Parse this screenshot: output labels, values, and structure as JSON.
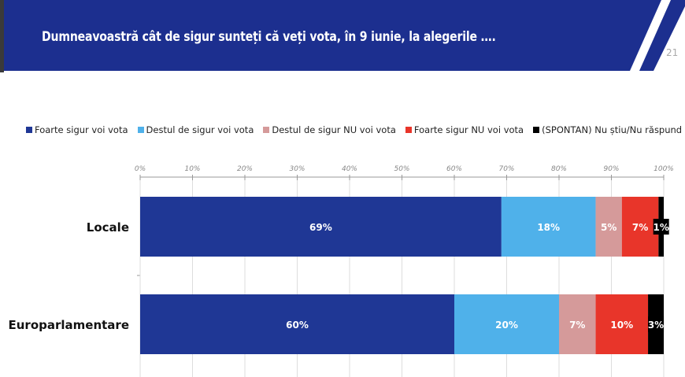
{
  "header": {
    "title": "Dumneavoastră cât de sigur sunteți că veți vota, în 9 iunie, la alegerile ….",
    "page_number": "21",
    "color": "#1c2f8f"
  },
  "chart_data": {
    "type": "bar",
    "orientation": "horizontal",
    "stacked": true,
    "categories": [
      "Locale",
      "Europarlamentare"
    ],
    "xlim": [
      0,
      100
    ],
    "xticks": [
      "0%",
      "10%",
      "20%",
      "30%",
      "40%",
      "50%",
      "60%",
      "70%",
      "80%",
      "90%",
      "100%"
    ],
    "legend_position": "top",
    "series": [
      {
        "name": "Foarte sigur voi vota",
        "color": "#1f3795",
        "values": [
          69,
          60
        ]
      },
      {
        "name": "Destul de sigur voi vota",
        "color": "#4fb1ea",
        "values": [
          18,
          20
        ]
      },
      {
        "name": "Destul de sigur NU voi vota",
        "color": "#d59a9a",
        "values": [
          5,
          7
        ]
      },
      {
        "name": "Foarte sigur NU voi vota",
        "color": "#e8352a",
        "values": [
          7,
          10
        ]
      },
      {
        "name": "(SPONTAN) Nu știu/Nu răspund",
        "color": "#000000",
        "values": [
          1,
          3
        ]
      }
    ]
  }
}
